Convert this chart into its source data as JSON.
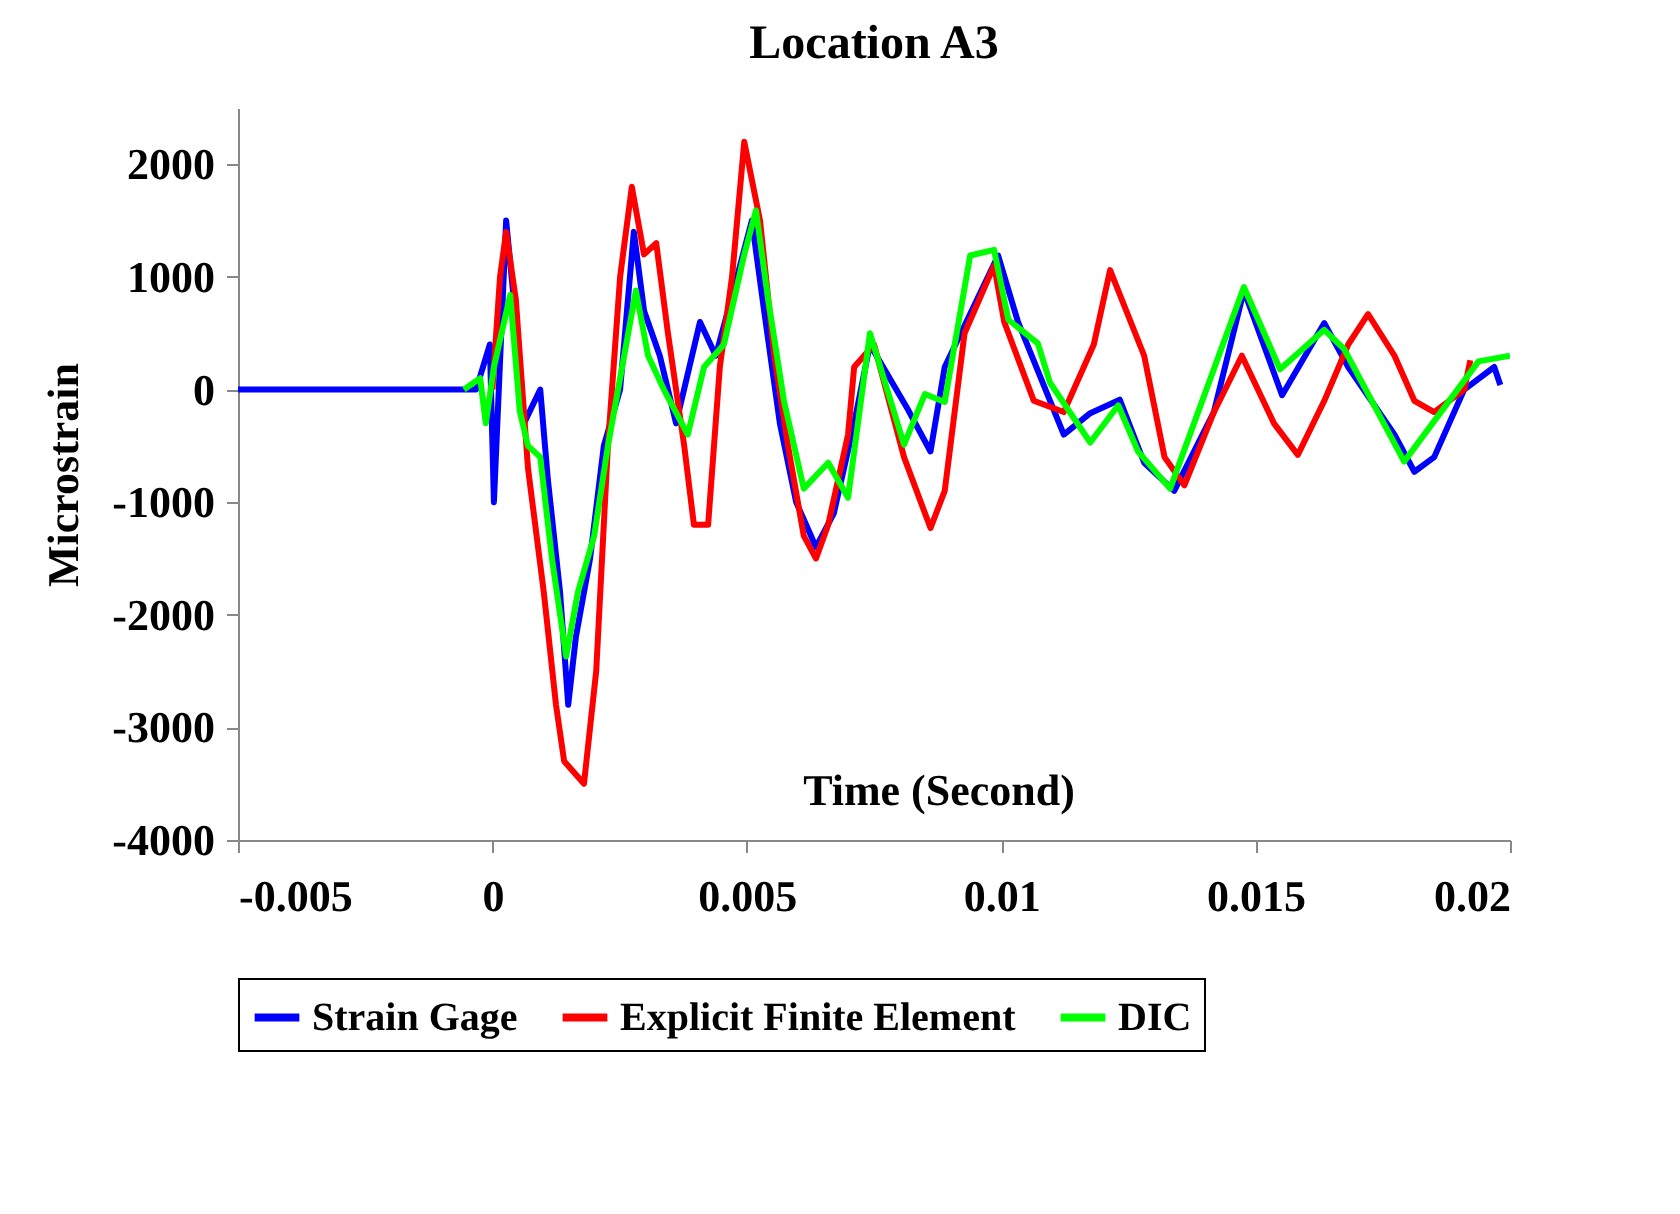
{
  "chart_data": {
    "type": "line",
    "title": "Location A3",
    "xlabel": "Time (Second)",
    "ylabel": "Microstrain",
    "xlim": [
      -0.005,
      0.02
    ],
    "xticks": [
      -0.005,
      0,
      0.005,
      0.01,
      0.015,
      0.02
    ],
    "ylim": [
      -4000,
      2500
    ],
    "yticks": [
      -4000,
      -3000,
      -2000,
      -1000,
      0,
      1000,
      2000
    ],
    "legend": "bottom",
    "series": [
      {
        "name": "Strain Gage",
        "color": "#0000ff",
        "x": [
          -0.005,
          -0.00032,
          -5e-05,
          3e-05,
          0.00027,
          0.00042,
          0.00062,
          0.00094,
          0.00109,
          0.00133,
          0.00149,
          0.00164,
          0.00192,
          0.00219,
          0.00251,
          0.00278,
          0.00298,
          0.00329,
          0.00361,
          0.00408,
          0.00439,
          0.00475,
          0.0051,
          0.00534,
          0.00565,
          0.00597,
          0.00636,
          0.00671,
          0.00711,
          0.00742,
          0.00817,
          0.00861,
          0.00889,
          0.00994,
          0.01033,
          0.01123,
          0.01175,
          0.01233,
          0.01281,
          0.0134,
          0.01418,
          0.01477,
          0.01552,
          0.01635,
          0.01682,
          0.01773,
          0.01812,
          0.01851,
          0.0191,
          0.01969,
          0.01981
        ],
        "values": [
          0,
          0,
          400,
          -1000,
          1500,
          800,
          -300,
          0,
          -800,
          -1800,
          -2800,
          -2200,
          -1500,
          -500,
          0,
          1400,
          700,
          300,
          -300,
          600,
          300,
          900,
          1500,
          700,
          -300,
          -1000,
          -1400,
          -1100,
          -300,
          400,
          -180,
          -550,
          200,
          1190,
          600,
          -400,
          -210,
          -90,
          -650,
          -900,
          -200,
          880,
          -50,
          590,
          200,
          -400,
          -730,
          -600,
          0,
          200,
          40
        ]
      },
      {
        "name": "Explicit Finite Element",
        "color": "#ff0000",
        "x": [
          0,
          0.00015,
          0.00027,
          0.00046,
          0.0007,
          0.00101,
          0.00125,
          0.00141,
          0.0018,
          0.00204,
          0.00227,
          0.00251,
          0.00274,
          0.00298,
          0.00322,
          0.00345,
          0.00377,
          0.00396,
          0.00424,
          0.00447,
          0.00471,
          0.00495,
          0.00526,
          0.00554,
          0.00581,
          0.00612,
          0.00636,
          0.0066,
          0.00699,
          0.00711,
          0.0075,
          0.00809,
          0.00861,
          0.00889,
          0.00928,
          0.00986,
          0.01006,
          0.01064,
          0.01123,
          0.01182,
          0.01214,
          0.01281,
          0.01321,
          0.0136,
          0.01418,
          0.01473,
          0.01536,
          0.01583,
          0.01635,
          0.01682,
          0.01721,
          0.01773,
          0.01812,
          0.01851,
          0.0191,
          0.01922
        ],
        "values": [
          0,
          1000,
          1400,
          800,
          -700,
          -1800,
          -2800,
          -3300,
          -3500,
          -2500,
          -500,
          1000,
          1800,
          1200,
          1300,
          500,
          -500,
          -1200,
          -1200,
          200,
          1000,
          2200,
          1500,
          300,
          -500,
          -1300,
          -1500,
          -1200,
          -400,
          200,
          400,
          -600,
          -1230,
          -900,
          500,
          1100,
          600,
          -100,
          -200,
          400,
          1060,
          300,
          -600,
          -850,
          -200,
          300,
          -300,
          -580,
          -100,
          400,
          670,
          300,
          -100,
          -200,
          0,
          260
        ]
      },
      {
        "name": "DIC",
        "color": "#00ff00",
        "x": [
          -0.00056,
          -0.00024,
          -0.00013,
          3e-05,
          0.00035,
          0.00054,
          0.0007,
          0.00094,
          0.00117,
          0.00145,
          0.00168,
          0.002,
          0.00227,
          0.00259,
          0.00282,
          0.00306,
          0.00337,
          0.00384,
          0.00416,
          0.00455,
          0.00495,
          0.00518,
          0.00542,
          0.00573,
          0.00612,
          0.0066,
          0.00699,
          0.00742,
          0.00809,
          0.0085,
          0.00889,
          0.00939,
          0.00986,
          0.01014,
          0.01072,
          0.01096,
          0.01175,
          0.0123,
          0.01269,
          0.01332,
          0.01477,
          0.01548,
          0.01635,
          0.01674,
          0.01792,
          0.01938,
          0.02
        ],
        "values": [
          0,
          100,
          -300,
          200,
          840,
          -200,
          -500,
          -600,
          -1500,
          -2370,
          -1800,
          -1300,
          -500,
          300,
          880,
          300,
          0,
          -400,
          200,
          400,
          1200,
          1590,
          800,
          -100,
          -880,
          -650,
          -960,
          500,
          -490,
          -40,
          -110,
          1190,
          1240,
          620,
          410,
          60,
          -470,
          -140,
          -550,
          -880,
          910,
          180,
          530,
          360,
          -640,
          250,
          300
        ]
      }
    ]
  }
}
